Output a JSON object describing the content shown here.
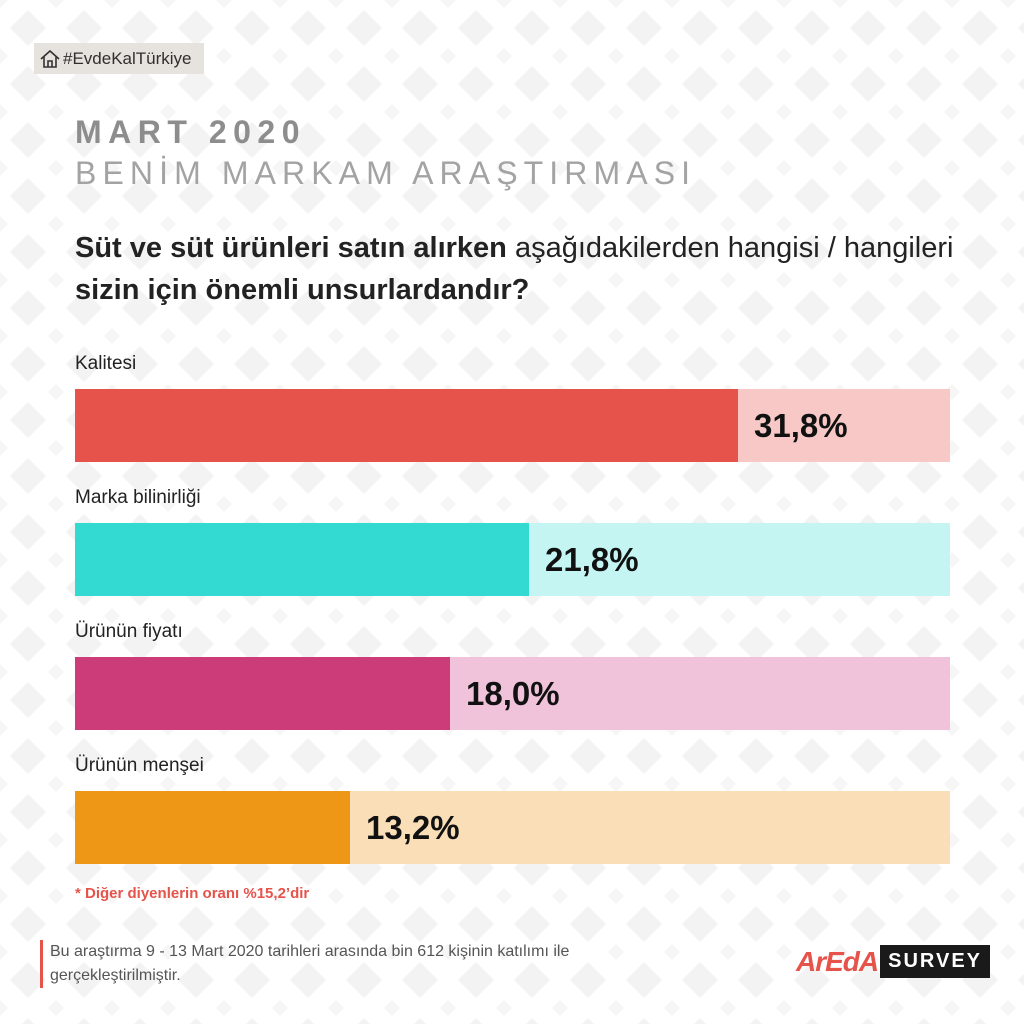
{
  "hashtag": "#EvdeKalTürkiye",
  "title_line1": "MART 2020",
  "title_line2": "BENİM MARKAM ARAŞTIRMASI",
  "question": {
    "part1_bold": "Süt ve süt ürünleri satın alırken",
    "part2": "aşağıdakilerden hangisi / hangileri",
    "part3_bold": "sizin için önemli unsurlardandır?"
  },
  "chart_data": {
    "type": "bar",
    "orientation": "horizontal",
    "categories": [
      "Kalitesi",
      "Marka bilinirliği",
      "Ürünün fiyatı",
      "Ürünün menşei"
    ],
    "values": [
      31.8,
      21.8,
      18.0,
      13.2
    ],
    "value_labels": [
      "31,8%",
      "21,8%",
      "18,0%",
      "13,2%"
    ],
    "colors": [
      "#e5534b",
      "#33dad2",
      "#cc3c78",
      "#ee9616"
    ],
    "track_colors": [
      "#f7c8c5",
      "#c5f5f2",
      "#f0c3da",
      "#f9deb8"
    ],
    "xlim": [
      0,
      42
    ],
    "grid": false
  },
  "footnote": "* Diğer diyenlerin oranı %15,2’dir",
  "source": "Bu araştırma 9 - 13 Mart 2020 tarihleri arasında bin 612 kişinin katılımı ile gerçekleştirilmiştir.",
  "logo": {
    "brand": "ArEdA",
    "survey": "SURVEY"
  }
}
